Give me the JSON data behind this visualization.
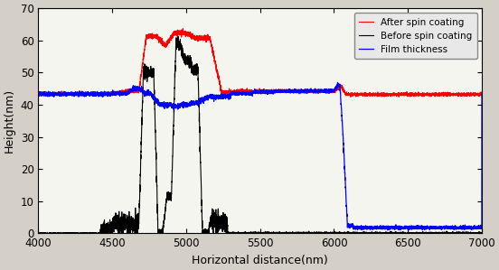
{
  "title": "",
  "xlabel": "Horizontal distance(nm)",
  "ylabel": "Height(nm)",
  "xlim": [
    4000,
    7000
  ],
  "ylim": [
    0,
    70
  ],
  "xticks": [
    4000,
    4500,
    5000,
    5500,
    6000,
    6500,
    7000
  ],
  "yticks": [
    0,
    10,
    20,
    30,
    40,
    50,
    60,
    70
  ],
  "legend": [
    "After spin coating",
    "Before spin coating",
    "Film thickness"
  ],
  "line_colors": [
    "red",
    "black",
    "blue"
  ],
  "bg_color": "#e8e8e8"
}
